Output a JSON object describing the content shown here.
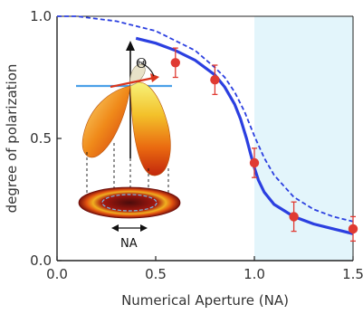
{
  "chart_data": {
    "type": "scatter",
    "title": "",
    "xlabel": "Numerical Aperture (NA)",
    "ylabel": "degree of polarization",
    "xlim": [
      0.0,
      1.5
    ],
    "ylim": [
      0.0,
      1.0
    ],
    "x_ticks": [
      "0.0",
      "0.5",
      "1.0",
      "1.5"
    ],
    "y_ticks": [
      "0.0",
      "0.5",
      "1.0"
    ],
    "shaded_region": {
      "x_from": 1.0,
      "x_to": 1.5,
      "color": "#e3f5fb"
    },
    "series": [
      {
        "style": "solid-line",
        "color": "#2b3fe0",
        "x": [
          0.4,
          0.5,
          0.6,
          0.7,
          0.8,
          0.85,
          0.9,
          0.93,
          0.96,
          0.98,
          1.0,
          1.02,
          1.05,
          1.1,
          1.2,
          1.3,
          1.4,
          1.5
        ],
        "y": [
          0.91,
          0.89,
          0.86,
          0.82,
          0.76,
          0.71,
          0.64,
          0.58,
          0.5,
          0.44,
          0.38,
          0.33,
          0.28,
          0.23,
          0.18,
          0.15,
          0.13,
          0.11
        ]
      },
      {
        "style": "dashed-line",
        "color": "#2b3fe0",
        "x": [
          0.0,
          0.1,
          0.2,
          0.3,
          0.4,
          0.5,
          0.6,
          0.7,
          0.8,
          0.85,
          0.9,
          0.95,
          1.0,
          1.05,
          1.1,
          1.2,
          1.3,
          1.4,
          1.5
        ],
        "y": [
          1.0,
          1.0,
          0.99,
          0.98,
          0.96,
          0.94,
          0.9,
          0.86,
          0.79,
          0.75,
          0.69,
          0.61,
          0.51,
          0.42,
          0.35,
          0.26,
          0.21,
          0.18,
          0.16
        ]
      },
      {
        "style": "points-with-errorbars",
        "color": "#e03a32",
        "x": [
          0.6,
          0.8,
          1.0,
          1.2,
          1.5
        ],
        "y": [
          0.81,
          0.74,
          0.4,
          0.18,
          0.13
        ],
        "yerr": [
          0.06,
          0.06,
          0.06,
          0.06,
          0.05
        ]
      }
    ],
    "inset": {
      "label_theta": "Θ",
      "label_na": "NA"
    }
  }
}
